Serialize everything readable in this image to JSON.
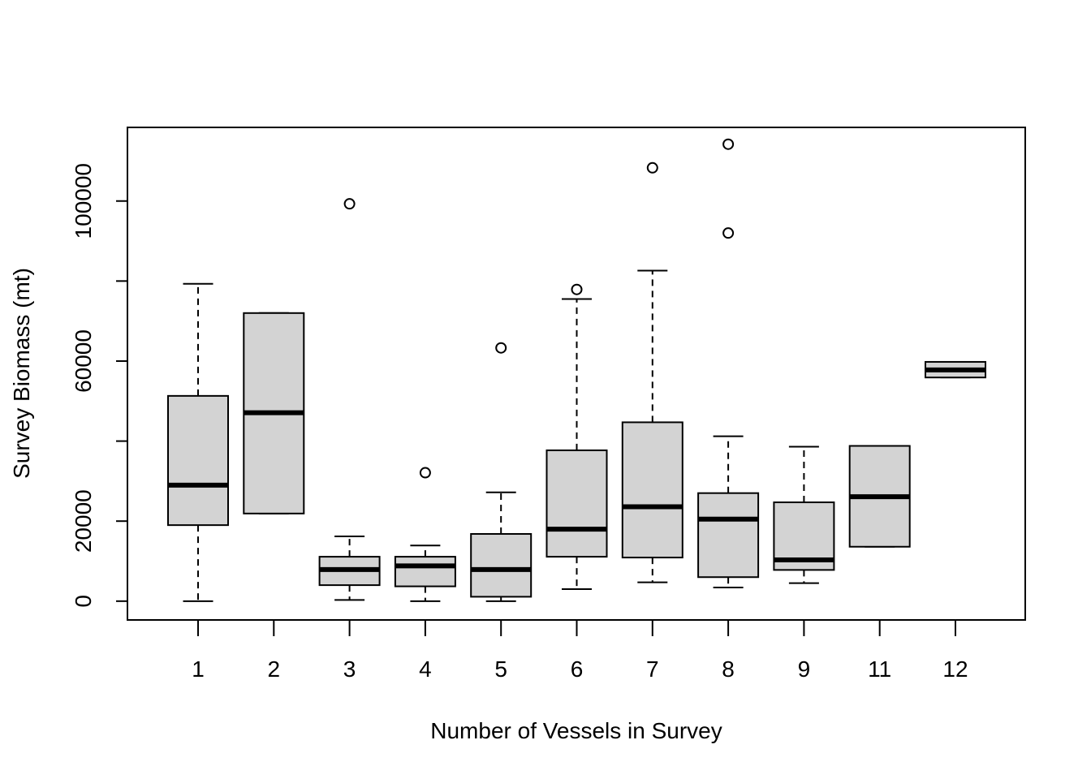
{
  "chart_data": {
    "type": "boxplot",
    "title": "",
    "xlabel": "Number of Vessels in Survey",
    "ylabel": "Survey Biomass (mt)",
    "categories": [
      "1",
      "2",
      "3",
      "4",
      "5",
      "6",
      "7",
      "8",
      "9",
      "11",
      "12"
    ],
    "ylim": [
      -4700,
      118400
    ],
    "yticks": [
      0,
      20000,
      40000,
      60000,
      80000,
      100000
    ],
    "ytick_labels": [
      "0",
      "20000",
      "",
      "60000",
      "",
      "100000"
    ],
    "box_fill": "#d3d3d3",
    "grid": false,
    "legend": "none",
    "boxes": [
      {
        "category": "1",
        "whisker_low": 0,
        "q1": 19000,
        "median": 29000,
        "q3": 51300,
        "whisker_high": 79300,
        "outliers": []
      },
      {
        "category": "2",
        "whisker_low": 21900,
        "q1": 21900,
        "median": 47100,
        "q3": 72000,
        "whisker_high": 72000,
        "outliers": []
      },
      {
        "category": "3",
        "whisker_low": 300,
        "q1": 4000,
        "median": 7900,
        "q3": 11100,
        "whisker_high": 16200,
        "outliers": [
          99300
        ]
      },
      {
        "category": "4",
        "whisker_low": 0,
        "q1": 3700,
        "median": 8800,
        "q3": 11100,
        "whisker_high": 13900,
        "outliers": [
          32100
        ]
      },
      {
        "category": "5",
        "whisker_low": 0,
        "q1": 1100,
        "median": 7900,
        "q3": 16800,
        "whisker_high": 27200,
        "outliers": [
          63300
        ]
      },
      {
        "category": "6",
        "whisker_low": 3000,
        "q1": 11100,
        "median": 18000,
        "q3": 37700,
        "whisker_high": 75500,
        "outliers": [
          77900
        ]
      },
      {
        "category": "7",
        "whisker_low": 4700,
        "q1": 10900,
        "median": 23600,
        "q3": 44700,
        "whisker_high": 82600,
        "outliers": [
          108300
        ]
      },
      {
        "category": "8",
        "whisker_low": 3400,
        "q1": 6000,
        "median": 20500,
        "q3": 27000,
        "whisker_high": 41200,
        "outliers": [
          114200,
          92000
        ]
      },
      {
        "category": "9",
        "whisker_low": 4500,
        "q1": 7800,
        "median": 10300,
        "q3": 24700,
        "whisker_high": 38600,
        "outliers": []
      },
      {
        "category": "11",
        "whisker_low": 13600,
        "q1": 13600,
        "median": 26100,
        "q3": 38800,
        "whisker_high": 38800,
        "outliers": []
      },
      {
        "category": "12",
        "whisker_low": 55900,
        "q1": 55900,
        "median": 57800,
        "q3": 59800,
        "whisker_high": 59800,
        "outliers": []
      }
    ]
  }
}
